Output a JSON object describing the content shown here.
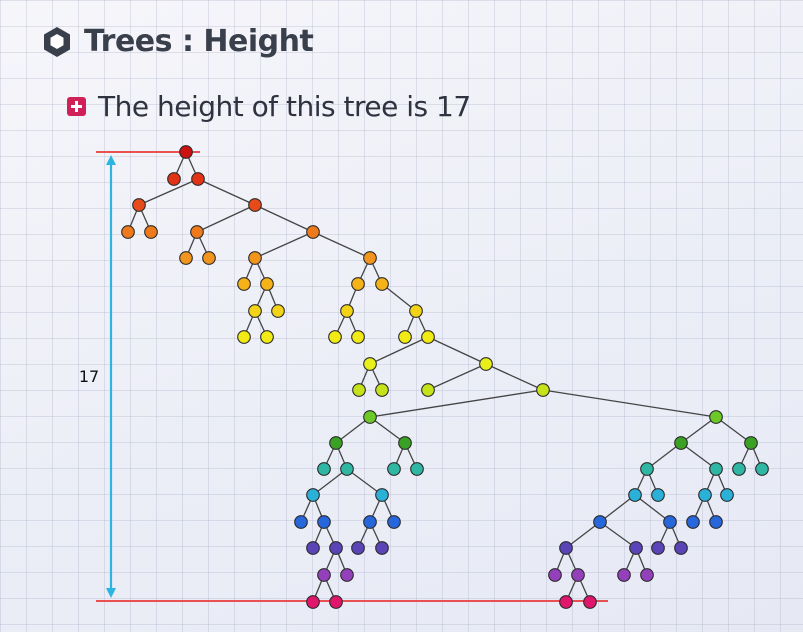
{
  "header": {
    "title": "Trees : Height",
    "icon": "hexagon-icon"
  },
  "bullet": {
    "text": "The height of this tree is 17",
    "icon": "plus-square-icon",
    "icon_color": "#cf2157"
  },
  "height_indicator": {
    "label": "17",
    "line_color": "#e83a3a",
    "arrow_color": "#2bb5e0"
  },
  "tree": {
    "node_stroke": "#2a2a2a",
    "edge_color": "#444444",
    "level_colors": [
      "#cc1111",
      "#e33317",
      "#e84b1a",
      "#ee7a1c",
      "#f2951f",
      "#f6b219",
      "#f3d318",
      "#f2ea14",
      "#e8ef1b",
      "#c6e21a",
      "#6cc927",
      "#3aa124",
      "#2fb7a3",
      "#2bb0d8",
      "#2866dc",
      "#3a3ccf",
      "#5b44b7",
      "#9540bb",
      "#e0166c"
    ],
    "nodes": []
  }
}
